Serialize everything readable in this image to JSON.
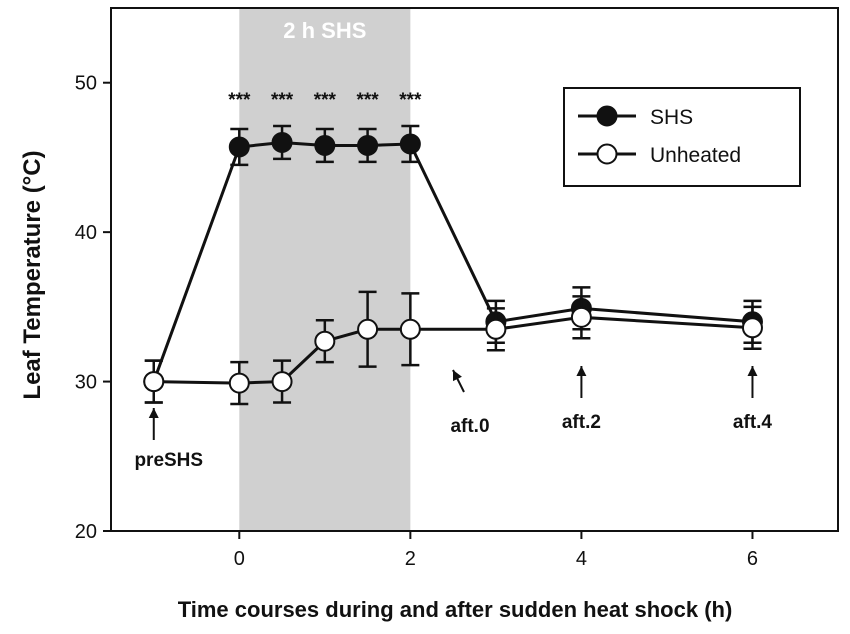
{
  "chart_data": {
    "type": "line",
    "xlabel": "Time courses during and after sudden heat shock (h)",
    "ylabel": "Leaf Temperature (°C)",
    "xlim": [
      -1.5,
      7
    ],
    "ylim": [
      20,
      55
    ],
    "xticks": [
      0,
      2,
      4,
      6
    ],
    "yticks": [
      20,
      30,
      40,
      50
    ],
    "shaded_region": {
      "x": [
        0,
        2
      ],
      "label": "2 h SHS",
      "color": "#d0d0d0"
    },
    "series": [
      {
        "name": "SHS",
        "marker": "filled-circle",
        "color": "#111111",
        "points": [
          {
            "x": -1,
            "y": 30.0,
            "err": 1.4
          },
          {
            "x": 0,
            "y": 45.7,
            "err": 1.2
          },
          {
            "x": 0.5,
            "y": 46.0,
            "err": 1.1
          },
          {
            "x": 1,
            "y": 45.8,
            "err": 1.1
          },
          {
            "x": 1.5,
            "y": 45.8,
            "err": 1.1
          },
          {
            "x": 2,
            "y": 45.9,
            "err": 1.2
          },
          {
            "x": 3,
            "y": 34.0,
            "err": 1.4
          },
          {
            "x": 4,
            "y": 34.9,
            "err": 1.4
          },
          {
            "x": 6,
            "y": 34.0,
            "err": 1.4
          }
        ]
      },
      {
        "name": "Unheated",
        "marker": "open-circle",
        "color": "#111111",
        "points": [
          {
            "x": -1,
            "y": 30.0,
            "err": 1.4
          },
          {
            "x": 0,
            "y": 29.9,
            "err": 1.4
          },
          {
            "x": 0.5,
            "y": 30.0,
            "err": 1.4
          },
          {
            "x": 1,
            "y": 32.7,
            "err": 1.4
          },
          {
            "x": 1.5,
            "y": 33.5,
            "err": 2.5
          },
          {
            "x": 2,
            "y": 33.5,
            "err": 2.4
          },
          {
            "x": 3,
            "y": 33.5,
            "err": 1.4
          },
          {
            "x": 4,
            "y": 34.3,
            "err": 1.4
          },
          {
            "x": 6,
            "y": 33.6,
            "err": 1.4
          }
        ]
      }
    ],
    "significance": [
      {
        "x": 0,
        "label": "***"
      },
      {
        "x": 0.5,
        "label": "***"
      },
      {
        "x": 1,
        "label": "***"
      },
      {
        "x": 1.5,
        "label": "***"
      },
      {
        "x": 2,
        "label": "***"
      }
    ],
    "annotations": [
      {
        "label": "preSHS",
        "x": -1
      },
      {
        "label": "aft.0",
        "x": 2.2
      },
      {
        "label": "aft.2",
        "x": 4
      },
      {
        "label": "aft.4",
        "x": 6
      }
    ],
    "legend": {
      "position": "top-right"
    },
    "grid": false
  }
}
